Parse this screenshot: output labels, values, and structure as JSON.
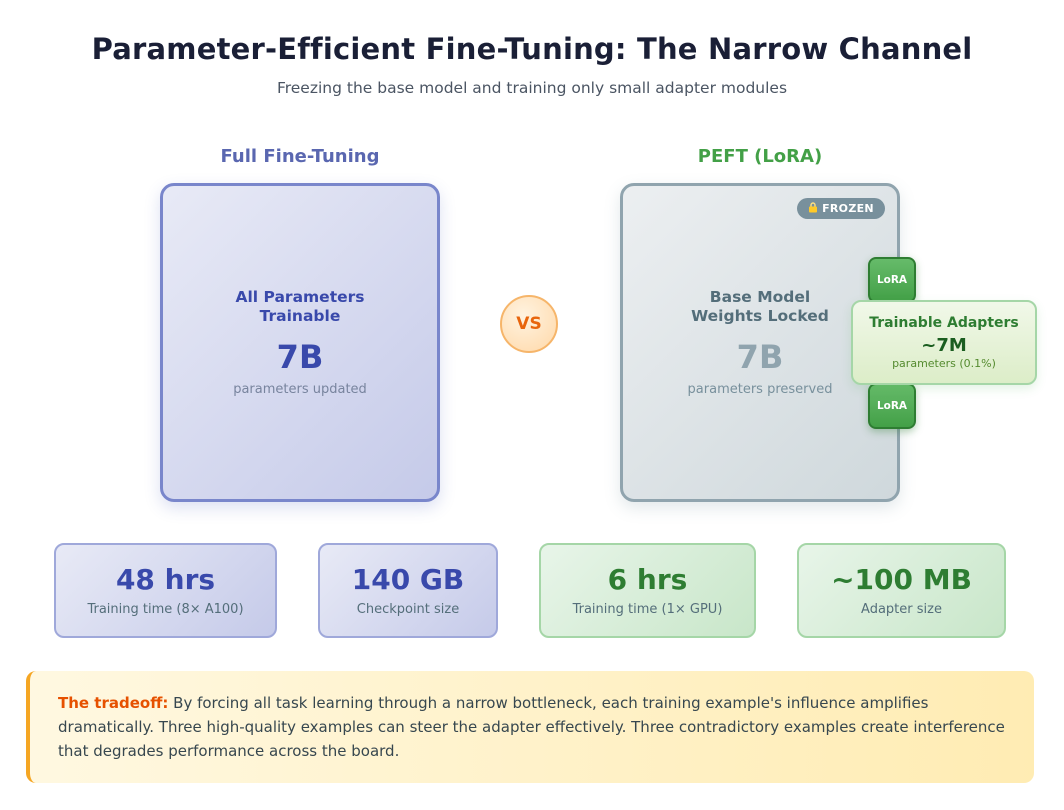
{
  "header": {
    "title": "Parameter-Efficient Fine-Tuning: The Narrow Channel",
    "subtitle": "Freezing the base model and training only small adapter modules"
  },
  "full": {
    "label": "Full Fine-Tuning",
    "head_line1": "All Parameters",
    "head_line2": "Trainable",
    "number": "7B",
    "caption": "parameters updated"
  },
  "vs": "VS",
  "peft": {
    "label": "PEFT (LoRA)",
    "badge_text": "FROZEN",
    "head_line1": "Base Model",
    "head_line2": "Weights Locked",
    "number": "7B",
    "caption": "parameters preserved",
    "lora_top": "LoRA",
    "lora_bottom": "LoRA",
    "adapter_title": "Trainable Adapters",
    "adapter_value": "~7M",
    "adapter_caption": "parameters (0.1%)"
  },
  "stats": [
    {
      "value": "48 hrs",
      "label": "Training time (8× A100)"
    },
    {
      "value": "140 GB",
      "label": "Checkpoint size"
    },
    {
      "value": "6 hrs",
      "label": "Training time (1× GPU)"
    },
    {
      "value": "~100 MB",
      "label": "Adapter size"
    }
  ],
  "callout": {
    "lead": "The tradeoff:",
    "text": "By forcing all task learning through a narrow bottleneck, each training example's influence amplifies dramatically. Three high-quality examples can steer the adapter effectively. Three contradictory examples create interference that degrades performance across the board."
  },
  "colors": {
    "full_accent": "#5a67b0",
    "peft_accent": "#43a047",
    "vs_accent": "#e8650c",
    "callout_accent": "#e65100"
  },
  "icons": {
    "frozen": "lock-icon"
  }
}
